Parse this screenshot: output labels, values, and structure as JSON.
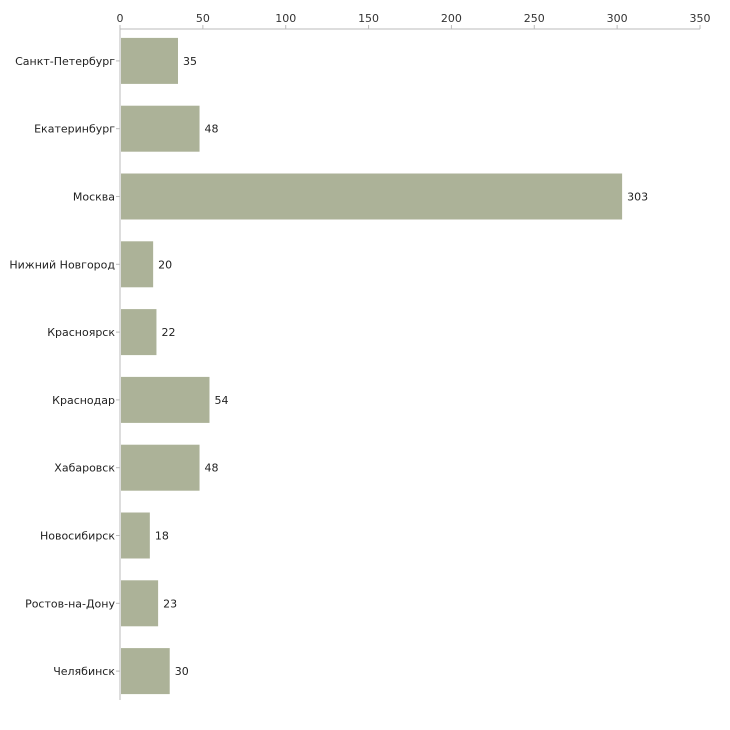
{
  "chart_data": {
    "type": "bar",
    "orientation": "horizontal",
    "title": "",
    "xlabel": "",
    "ylabel": "",
    "xlim": [
      0,
      350
    ],
    "xticks": [
      0,
      50,
      100,
      150,
      200,
      250,
      300,
      350
    ],
    "grid": false,
    "axis_position": "top",
    "bar_color": "#acb298",
    "categories": [
      "Санкт-Петербург",
      "Екатеринбург",
      "Москва",
      "Нижний Новгород",
      "Красноярск",
      "Краснодар",
      "Хабаровск",
      "Новосибирск",
      "Ростов-на-Дону",
      "Челябинск"
    ],
    "values": [
      35,
      48,
      303,
      20,
      22,
      54,
      48,
      18,
      23,
      30
    ]
  }
}
